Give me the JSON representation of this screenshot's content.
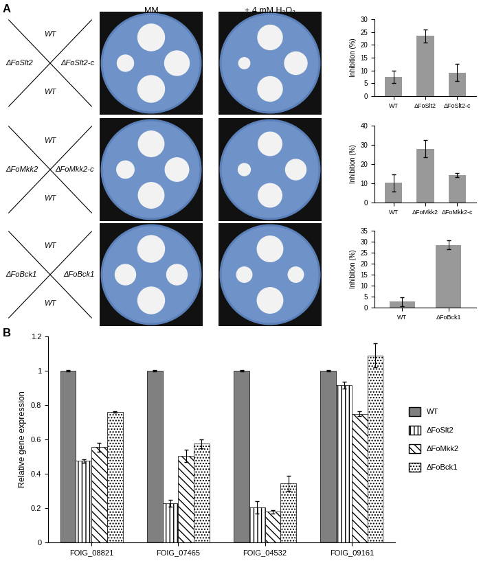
{
  "panel_labels": [
    "A",
    "B"
  ],
  "plate_conditions": [
    "MM",
    "+ 4 mM H₂O₂"
  ],
  "plate_layouts": [
    {
      "top": "WT",
      "left": "ΔFoSlt2",
      "right": "ΔFoSlt2-c",
      "bottom": "WT"
    },
    {
      "top": "WT",
      "left": "ΔFoMkk2",
      "right": "ΔFoMkk2-c",
      "bottom": "WT"
    },
    {
      "top": "WT",
      "left": "ΔFoBck1",
      "right": "ΔFoBck1",
      "bottom": "WT"
    }
  ],
  "chart_data": [
    {
      "type": "bar",
      "y_label": "Inhibition (%)",
      "categories": [
        "WT",
        "ΔFoSlt2",
        "ΔFoSlt2-c"
      ],
      "values": [
        7.5,
        23.5,
        9.2
      ],
      "errors": [
        2.3,
        2.5,
        3.3
      ],
      "color": "#999999",
      "ylim": [
        0,
        30
      ],
      "yticks": [
        0,
        5,
        10,
        15,
        20,
        25,
        30
      ],
      "grid": false
    },
    {
      "type": "bar",
      "y_label": "Inhibition (%)",
      "categories": [
        "WT",
        "ΔFoMkk2",
        "ΔFoMkk2-c"
      ],
      "values": [
        10.3,
        28,
        14.2
      ],
      "errors": [
        4.5,
        4.5,
        1.0
      ],
      "color": "#999999",
      "ylim": [
        0,
        40
      ],
      "yticks": [
        0,
        10,
        20,
        30,
        40
      ],
      "grid": false
    },
    {
      "type": "bar",
      "y_label": "Inhibition (%)",
      "categories": [
        "WT",
        "ΔFoBck1"
      ],
      "values": [
        2.7,
        28.5
      ],
      "errors": [
        2.0,
        2.0
      ],
      "color": "#999999",
      "ylim": [
        0,
        35
      ],
      "yticks": [
        0,
        5,
        10,
        15,
        20,
        25,
        30,
        35
      ],
      "grid": false
    },
    {
      "type": "bar",
      "y_label": "Relative gene expression",
      "categories": [
        "FOIG_08821",
        "FOIG_07465",
        "FOIG_04532",
        "FOIG_09161"
      ],
      "series": [
        {
          "name": "WT",
          "color": "#808080",
          "values": [
            1,
            1,
            1,
            1
          ],
          "errors": [
            0.003,
            0.003,
            0.003,
            0.003
          ]
        },
        {
          "name": "ΔFoSlt2",
          "color": "#ffffff",
          "values": [
            0.475,
            0.23,
            0.205,
            0.915
          ],
          "errors": [
            0.01,
            0.02,
            0.035,
            0.02
          ]
        },
        {
          "name": "ΔFoMkk2",
          "color": "#ffffff",
          "values": [
            0.555,
            0.505,
            0.18,
            0.75
          ],
          "errors": [
            0.025,
            0.035,
            0.01,
            0.015
          ]
        },
        {
          "name": "ΔFoBck1",
          "color": "#ffffff",
          "values": [
            0.76,
            0.575,
            0.345,
            1.09
          ],
          "errors": [
            0.005,
            0.025,
            0.045,
            0.07
          ]
        }
      ],
      "ylim": [
        0,
        1.2
      ],
      "yticks": [
        0,
        0.2,
        0.4,
        0.6,
        0.8,
        1,
        1.2
      ],
      "grid": false,
      "legend": "right"
    }
  ]
}
